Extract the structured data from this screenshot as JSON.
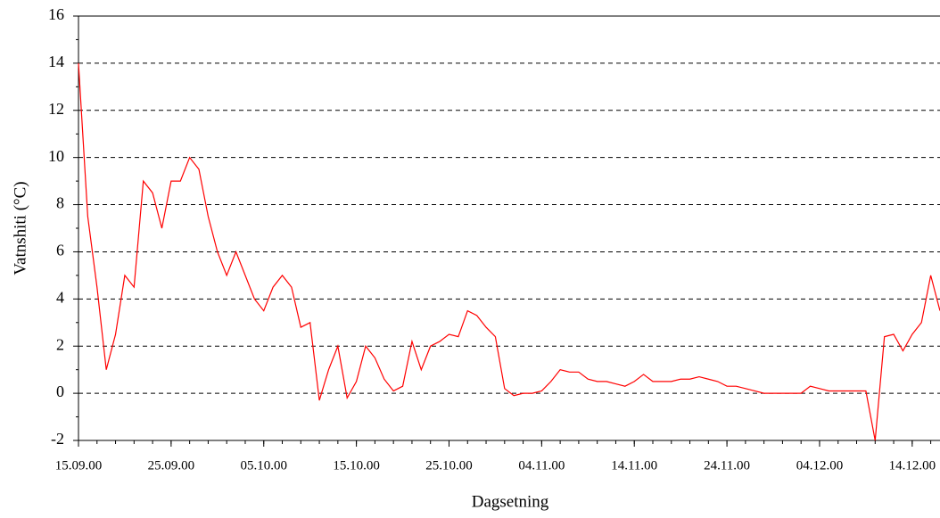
{
  "chart_data": {
    "type": "line",
    "xlabel": "Dagsetning",
    "ylabel": "Vatnshiti (°C)",
    "x": [
      "15.09.00",
      "16.09.00",
      "17.09.00",
      "18.09.00",
      "19.09.00",
      "20.09.00",
      "21.09.00",
      "22.09.00",
      "23.09.00",
      "24.09.00",
      "25.09.00",
      "26.09.00",
      "27.09.00",
      "28.09.00",
      "29.09.00",
      "30.09.00",
      "01.10.00",
      "02.10.00",
      "03.10.00",
      "04.10.00",
      "05.10.00",
      "06.10.00",
      "07.10.00",
      "08.10.00",
      "09.10.00",
      "10.10.00",
      "11.10.00",
      "12.10.00",
      "13.10.00",
      "14.10.00",
      "15.10.00",
      "16.10.00",
      "17.10.00",
      "18.10.00",
      "19.10.00",
      "20.10.00",
      "21.10.00",
      "22.10.00",
      "23.10.00",
      "24.10.00",
      "25.10.00",
      "26.10.00",
      "27.10.00",
      "28.10.00",
      "29.10.00",
      "30.10.00",
      "31.10.00",
      "01.11.00",
      "02.11.00",
      "03.11.00",
      "04.11.00",
      "05.11.00",
      "06.11.00",
      "07.11.00",
      "08.11.00",
      "09.11.00",
      "10.11.00",
      "11.11.00",
      "12.11.00",
      "13.11.00",
      "14.11.00",
      "15.11.00",
      "16.11.00",
      "17.11.00",
      "18.11.00",
      "19.11.00",
      "20.11.00",
      "21.11.00",
      "22.11.00",
      "23.11.00",
      "24.11.00",
      "25.11.00",
      "26.11.00",
      "27.11.00",
      "28.11.00",
      "29.11.00",
      "30.11.00",
      "01.12.00",
      "02.12.00",
      "03.12.00",
      "04.12.00",
      "05.12.00",
      "06.12.00",
      "07.12.00",
      "08.12.00",
      "09.12.00",
      "10.12.00",
      "11.12.00",
      "12.12.00",
      "13.12.00",
      "14.12.00",
      "15.12.00",
      "16.12.00",
      "17.12.00"
    ],
    "series": [
      {
        "name": "Vatnshiti",
        "color": "#ff0000",
        "values": [
          14,
          7.5,
          4.5,
          1,
          2.5,
          5,
          4.5,
          9,
          8.5,
          7,
          9,
          9,
          10,
          9.5,
          7.5,
          6,
          5,
          6,
          5,
          4,
          3.5,
          4.5,
          5,
          4.5,
          2.8,
          3,
          -0.3,
          1,
          2,
          -0.2,
          0.5,
          2,
          1.5,
          0.6,
          0.1,
          0.3,
          2.2,
          1,
          2,
          2.2,
          2.5,
          2.4,
          3.5,
          3.3,
          2.8,
          2.4,
          0.2,
          -0.1,
          0,
          0,
          0.1,
          0.5,
          1,
          0.9,
          0.9,
          0.6,
          0.5,
          0.5,
          0.4,
          0.3,
          0.5,
          0.8,
          0.5,
          0.5,
          0.5,
          0.6,
          0.6,
          0.7,
          0.6,
          0.5,
          0.3,
          0.3,
          0.2,
          0.1,
          0,
          0,
          0,
          0,
          0,
          0.3,
          0.2,
          0.1,
          0.1,
          0.1,
          0.1,
          0.1,
          -2,
          2.4,
          2.5,
          1.8,
          2.5,
          3,
          5,
          3.5
        ]
      }
    ],
    "xlim": [
      "15.09.00",
      "17.12.00"
    ],
    "xticks": [
      "15.09.00",
      "25.09.00",
      "05.10.00",
      "15.10.00",
      "25.10.00",
      "04.11.00",
      "14.11.00",
      "24.11.00",
      "04.12.00",
      "14.12.00"
    ],
    "ylim": [
      -2,
      16
    ],
    "yticks": [
      -2,
      0,
      2,
      4,
      6,
      8,
      10,
      12,
      14,
      16
    ],
    "grid": true
  }
}
